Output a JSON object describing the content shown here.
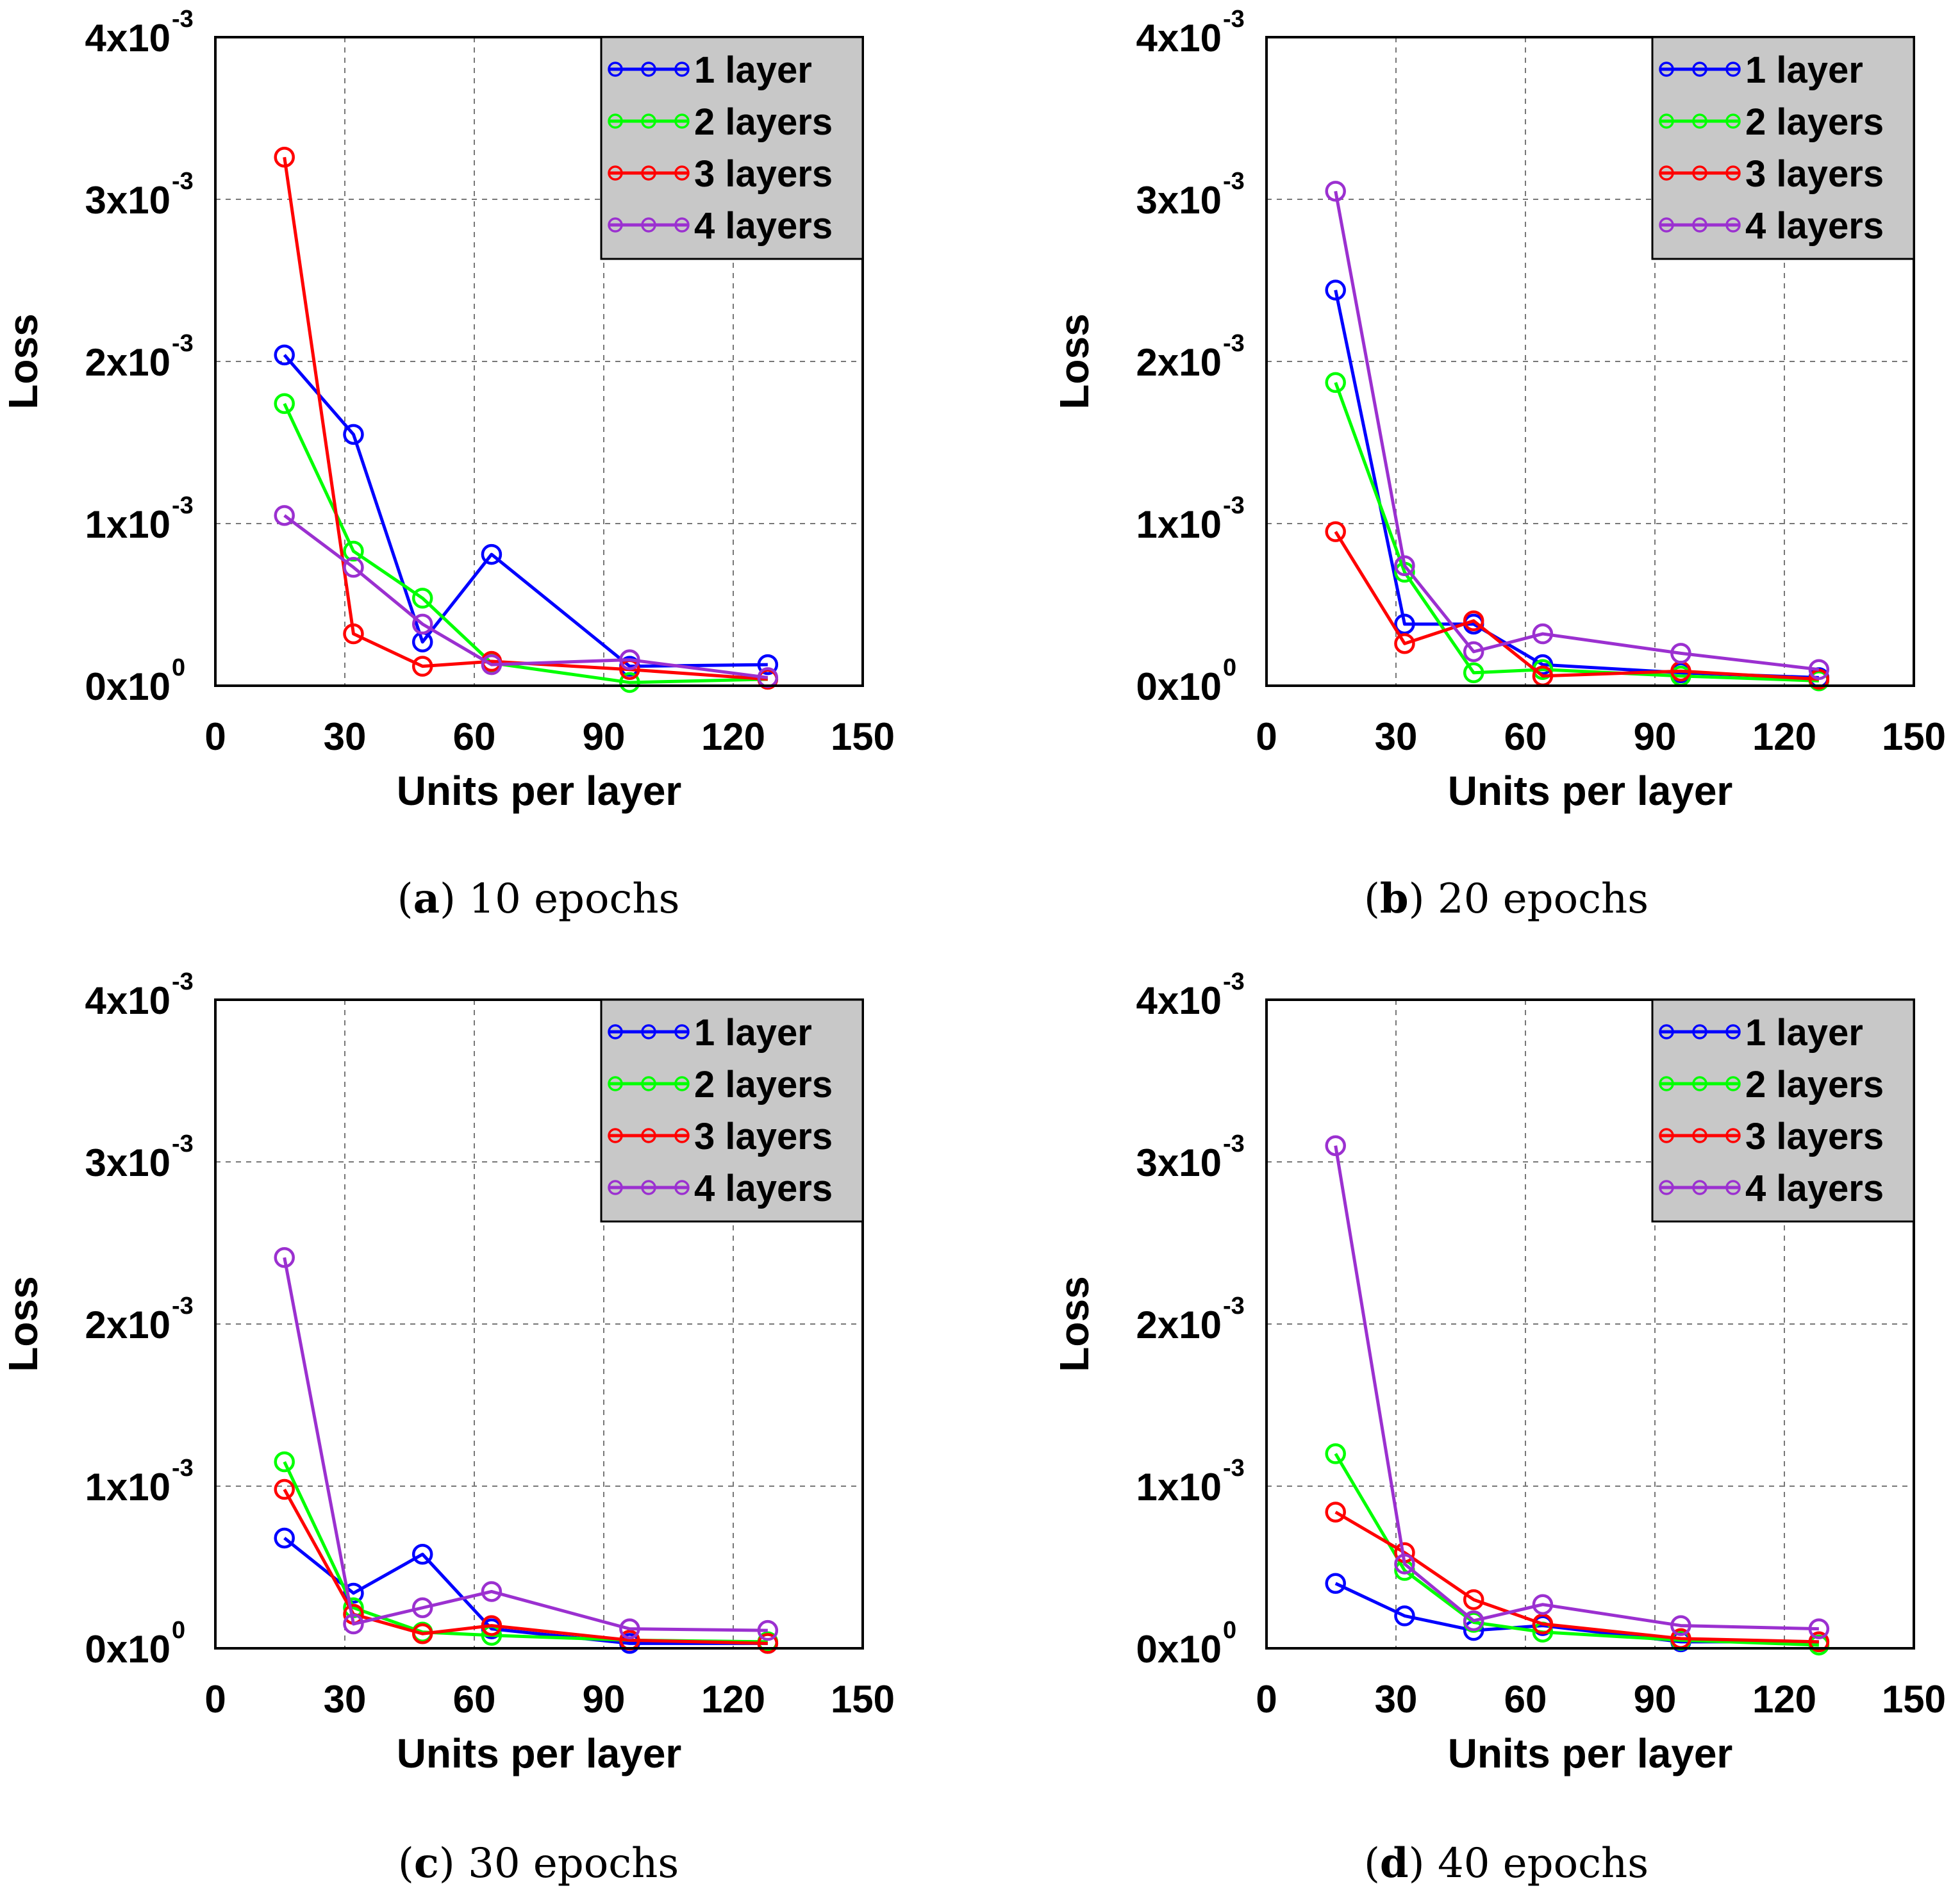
{
  "chart_data": [
    {
      "type": "line",
      "panel_letter": "a",
      "caption": "10 epochs",
      "xlabel": "Units per layer",
      "ylabel": "Loss",
      "xlim": [
        0,
        150
      ],
      "ylim": [
        0,
        0.004
      ],
      "xticks": [
        "0",
        "30",
        "60",
        "90",
        "120",
        "150"
      ],
      "yticks": [
        {
          "m": "0x10",
          "e": "0"
        },
        {
          "m": "1x10",
          "e": "-3"
        },
        {
          "m": "2x10",
          "e": "-3"
        },
        {
          "m": "3x10",
          "e": "-3"
        },
        {
          "m": "4x10",
          "e": "-3"
        }
      ],
      "grid": true,
      "legend_position": "top-right",
      "x": [
        16,
        32,
        48,
        64,
        96,
        128
      ],
      "series": [
        {
          "name": "1 layer",
          "color": "#0000ff",
          "values": [
            0.00204,
            0.00155,
            0.00027,
            0.00081,
            0.00012,
            0.00013
          ]
        },
        {
          "name": "2 layers",
          "color": "#00ff00",
          "values": [
            0.00174,
            0.00083,
            0.00054,
            0.00014,
            2e-05,
            4e-05
          ]
        },
        {
          "name": "3 layers",
          "color": "#ff0000",
          "values": [
            0.00326,
            0.00032,
            0.00012,
            0.00015,
            0.0001,
            4e-05
          ]
        },
        {
          "name": "4 layers",
          "color": "#9b30d0",
          "values": [
            0.00105,
            0.00073,
            0.00038,
            0.00013,
            0.00016,
            5e-05
          ]
        }
      ]
    },
    {
      "type": "line",
      "panel_letter": "b",
      "caption": "20 epochs",
      "xlabel": "Units per layer",
      "ylabel": "Loss",
      "xlim": [
        0,
        150
      ],
      "ylim": [
        0,
        0.004
      ],
      "xticks": [
        "0",
        "30",
        "60",
        "90",
        "120",
        "150"
      ],
      "yticks": [
        {
          "m": "0x10",
          "e": "0"
        },
        {
          "m": "1x10",
          "e": "-3"
        },
        {
          "m": "2x10",
          "e": "-3"
        },
        {
          "m": "3x10",
          "e": "-3"
        },
        {
          "m": "4x10",
          "e": "-3"
        }
      ],
      "grid": true,
      "legend_position": "top-right",
      "x": [
        16,
        32,
        48,
        64,
        96,
        128
      ],
      "series": [
        {
          "name": "1 layer",
          "color": "#0000ff",
          "values": [
            0.00244,
            0.00038,
            0.00038,
            0.00013,
            8e-05,
            5e-05
          ]
        },
        {
          "name": "2 layers",
          "color": "#00ff00",
          "values": [
            0.00187,
            0.0007,
            8e-05,
            0.0001,
            6e-05,
            3e-05
          ]
        },
        {
          "name": "3 layers",
          "color": "#ff0000",
          "values": [
            0.00095,
            0.00026,
            0.0004,
            6e-05,
            9e-05,
            4e-05
          ]
        },
        {
          "name": "4 layers",
          "color": "#9b30d0",
          "values": [
            0.00305,
            0.00074,
            0.00021,
            0.00032,
            0.0002,
            0.0001
          ]
        }
      ]
    },
    {
      "type": "line",
      "panel_letter": "c",
      "caption": "30 epochs",
      "xlabel": "Units per layer",
      "ylabel": "Loss",
      "xlim": [
        0,
        150
      ],
      "ylim": [
        0,
        0.004
      ],
      "xticks": [
        "0",
        "30",
        "60",
        "90",
        "120",
        "150"
      ],
      "yticks": [
        {
          "m": "0x10",
          "e": "0"
        },
        {
          "m": "1x10",
          "e": "-3"
        },
        {
          "m": "2x10",
          "e": "-3"
        },
        {
          "m": "3x10",
          "e": "-3"
        },
        {
          "m": "4x10",
          "e": "-3"
        }
      ],
      "grid": true,
      "legend_position": "top-right",
      "x": [
        16,
        32,
        48,
        64,
        96,
        128
      ],
      "series": [
        {
          "name": "1 layer",
          "color": "#0000ff",
          "values": [
            0.00068,
            0.00034,
            0.00058,
            0.00012,
            3e-05,
            3e-05
          ]
        },
        {
          "name": "2 layers",
          "color": "#00ff00",
          "values": [
            0.00115,
            0.00025,
            0.0001,
            8e-05,
            5e-05,
            4e-05
          ]
        },
        {
          "name": "3 layers",
          "color": "#ff0000",
          "values": [
            0.00098,
            0.00021,
            9e-05,
            0.00014,
            5e-05,
            3e-05
          ]
        },
        {
          "name": "4 layers",
          "color": "#9b30d0",
          "values": [
            0.00241,
            0.00015,
            0.00025,
            0.00035,
            0.00012,
            0.00011
          ]
        }
      ]
    },
    {
      "type": "line",
      "panel_letter": "d",
      "caption": "40 epochs",
      "xlabel": "Units per layer",
      "ylabel": "Loss",
      "xlim": [
        0,
        150
      ],
      "ylim": [
        0,
        0.004
      ],
      "xticks": [
        "0",
        "30",
        "60",
        "90",
        "120",
        "150"
      ],
      "yticks": [
        {
          "m": "0x10",
          "e": "0"
        },
        {
          "m": "1x10",
          "e": "-3"
        },
        {
          "m": "2x10",
          "e": "-3"
        },
        {
          "m": "3x10",
          "e": "-3"
        },
        {
          "m": "4x10",
          "e": "-3"
        }
      ],
      "grid": true,
      "legend_position": "top-right",
      "x": [
        16,
        32,
        48,
        64,
        96,
        128
      ],
      "series": [
        {
          "name": "1 layer",
          "color": "#0000ff",
          "values": [
            0.0004,
            0.0002,
            0.00011,
            0.00014,
            4e-05,
            4e-05
          ]
        },
        {
          "name": "2 layers",
          "color": "#00ff00",
          "values": [
            0.0012,
            0.00048,
            0.00016,
            0.0001,
            5e-05,
            2e-05
          ]
        },
        {
          "name": "3 layers",
          "color": "#ff0000",
          "values": [
            0.00084,
            0.00059,
            0.0003,
            0.00015,
            6e-05,
            4e-05
          ]
        },
        {
          "name": "4 layers",
          "color": "#9b30d0",
          "values": [
            0.0031,
            0.00052,
            0.00017,
            0.00027,
            0.00014,
            0.00012
          ]
        }
      ]
    }
  ]
}
